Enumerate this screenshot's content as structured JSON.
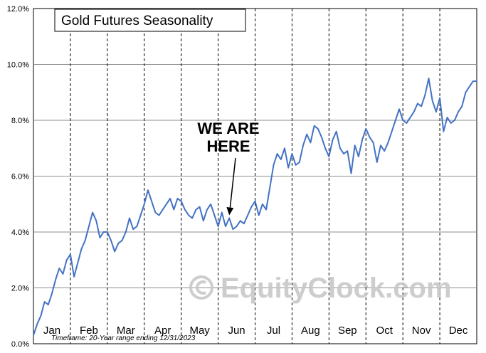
{
  "chart_data": {
    "type": "line",
    "title": "Gold Futures Seasonality",
    "y_ticks": [
      "0.0%",
      "2.0%",
      "4.0%",
      "6.0%",
      "8.0%",
      "10.0%",
      "12.0%"
    ],
    "ylim": [
      0,
      12
    ],
    "months": [
      "Jan",
      "Feb",
      "Mar",
      "Apr",
      "May",
      "Jun",
      "Jul",
      "Aug",
      "Sep",
      "Oct",
      "Nov",
      "Dec"
    ],
    "x_unit": "month position (0 = Jan 1, 12 = Dec 31)",
    "grid": {
      "horizontal": "solid",
      "vertical": "dashed"
    },
    "annotation": {
      "line1": "WE ARE",
      "line2": "HERE",
      "x": 5.3,
      "y": 4.6
    },
    "footnote": "Timeframe: 20-Year range ending 12/31/2023",
    "watermark": "EquityClock.com",
    "line_color": "#4472c4",
    "series": [
      {
        "x": [
          0.0,
          0.1,
          0.2,
          0.3,
          0.4,
          0.5,
          0.6,
          0.7,
          0.8,
          0.9,
          1.0,
          1.1,
          1.2,
          1.3,
          1.4,
          1.5,
          1.6,
          1.7,
          1.8,
          1.9,
          2.0,
          2.1,
          2.2,
          2.3,
          2.4,
          2.5,
          2.6,
          2.7,
          2.8,
          2.9,
          3.0,
          3.1,
          3.2,
          3.3,
          3.4,
          3.5,
          3.6,
          3.7,
          3.8,
          3.9,
          4.0,
          4.1,
          4.2,
          4.3,
          4.4,
          4.5,
          4.6,
          4.7,
          4.8,
          4.9,
          5.0,
          5.1,
          5.2,
          5.3,
          5.4,
          5.5,
          5.6,
          5.7,
          5.8,
          5.9,
          6.0,
          6.1,
          6.2,
          6.3,
          6.4,
          6.5,
          6.6,
          6.7,
          6.8,
          6.9,
          7.0,
          7.1,
          7.2,
          7.3,
          7.4,
          7.5,
          7.6,
          7.7,
          7.8,
          7.9,
          8.0,
          8.1,
          8.2,
          8.3,
          8.4,
          8.5,
          8.6,
          8.7,
          8.8,
          8.9,
          9.0,
          9.1,
          9.2,
          9.3,
          9.4,
          9.5,
          9.6,
          9.7,
          9.8,
          9.9,
          10.0,
          10.1,
          10.2,
          10.3,
          10.4,
          10.5,
          10.6,
          10.7,
          10.8,
          10.9,
          11.0,
          11.1,
          11.2,
          11.3,
          11.4,
          11.5,
          11.6,
          11.7,
          11.8,
          11.9,
          12.0
        ],
        "y": [
          0.3,
          0.7,
          1.0,
          1.5,
          1.4,
          1.8,
          2.3,
          2.7,
          2.5,
          3.0,
          3.2,
          2.4,
          2.9,
          3.4,
          3.7,
          4.2,
          4.7,
          4.4,
          3.8,
          4.0,
          4.0,
          3.7,
          3.3,
          3.6,
          3.7,
          4.0,
          4.5,
          4.1,
          4.2,
          4.6,
          5.0,
          5.5,
          5.1,
          4.7,
          4.6,
          4.8,
          5.0,
          5.2,
          4.8,
          5.2,
          5.1,
          4.8,
          4.6,
          4.5,
          4.8,
          4.9,
          4.4,
          4.8,
          5.0,
          4.6,
          4.2,
          4.7,
          4.2,
          4.5,
          4.1,
          4.2,
          4.4,
          4.3,
          4.6,
          4.9,
          5.1,
          4.6,
          5.0,
          4.8,
          5.6,
          6.4,
          6.8,
          6.6,
          7.0,
          6.3,
          6.8,
          6.4,
          6.5,
          7.1,
          7.5,
          7.2,
          7.8,
          7.7,
          7.4,
          7.0,
          6.7,
          7.3,
          7.6,
          7.0,
          6.8,
          6.9,
          6.1,
          7.1,
          6.7,
          7.3,
          7.7,
          7.4,
          7.2,
          6.5,
          7.1,
          6.9,
          7.2,
          7.6,
          8.0,
          8.4,
          8.0,
          7.9,
          8.1,
          8.3,
          8.6,
          8.5,
          8.9,
          9.5,
          8.7,
          8.3,
          8.8,
          7.6,
          8.1,
          7.9,
          8.0,
          8.3,
          8.5,
          9.0,
          9.2,
          9.4,
          9.4
        ]
      }
    ]
  }
}
